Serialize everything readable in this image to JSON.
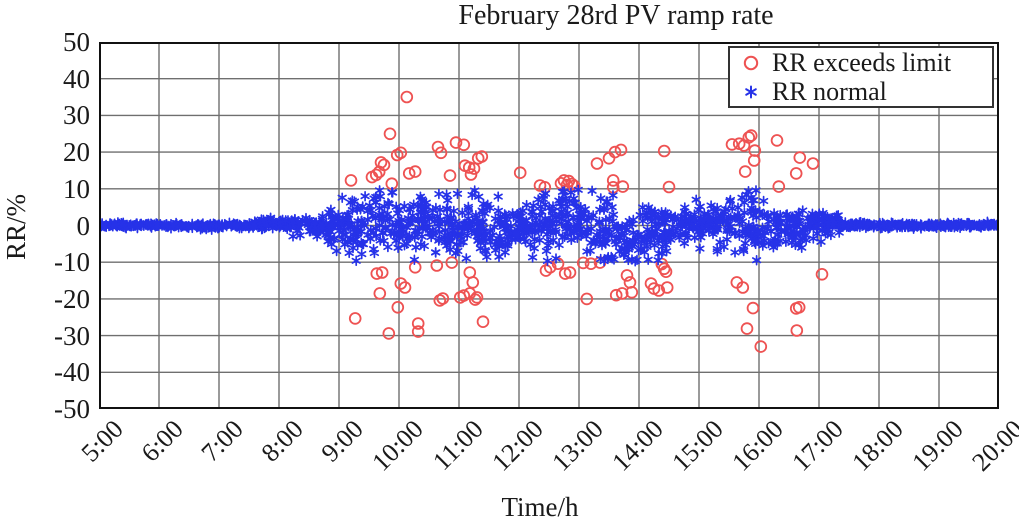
{
  "chart_data": {
    "type": "scatter",
    "title": "February 28rd PV ramp rate",
    "xlabel": "Time/h",
    "ylabel": "RR/%",
    "x_tick_labels": [
      "5:00",
      "6:00",
      "7:00",
      "8:00",
      "9:00",
      "10:00",
      "11:00",
      "12:00",
      "13:00",
      "14:00",
      "15:00",
      "16:00",
      "17:00",
      "18:00",
      "19:00",
      "20:00"
    ],
    "x_range": [
      5,
      20
    ],
    "ylim": [
      -50,
      50
    ],
    "y_ticks": [
      50,
      40,
      30,
      20,
      10,
      0,
      -10,
      -20,
      -30,
      -40,
      -50
    ],
    "grid": true,
    "legend_position": "top-right",
    "colors": {
      "exceeds": "#ee5252",
      "normal": "#2632e8",
      "grid": "#6f6f6f",
      "axis": "#111111"
    },
    "series": [
      {
        "name": "RR exceeds limit",
        "marker": "circle",
        "points": [
          [
            9.2,
            12.3
          ],
          [
            9.27,
            -25.3
          ],
          [
            9.55,
            13.2
          ],
          [
            9.62,
            13.8
          ],
          [
            9.67,
            14.6
          ],
          [
            9.63,
            -13.1
          ],
          [
            9.68,
            -18.5
          ],
          [
            9.7,
            17.2
          ],
          [
            9.72,
            -12.8
          ],
          [
            9.75,
            16.5
          ],
          [
            9.83,
            -29.4
          ],
          [
            9.85,
            25.0
          ],
          [
            9.88,
            11.4
          ],
          [
            9.97,
            19.2
          ],
          [
            9.98,
            -22.3
          ],
          [
            10.03,
            19.8
          ],
          [
            10.03,
            -15.8
          ],
          [
            10.1,
            -16.9
          ],
          [
            10.13,
            35.0
          ],
          [
            10.17,
            14.2
          ],
          [
            10.27,
            14.7
          ],
          [
            10.27,
            -11.4
          ],
          [
            10.32,
            -26.7
          ],
          [
            10.32,
            -28.9
          ],
          [
            10.63,
            -10.9
          ],
          [
            10.65,
            21.4
          ],
          [
            10.68,
            -20.4
          ],
          [
            10.7,
            19.8
          ],
          [
            10.73,
            -19.9
          ],
          [
            10.85,
            13.6
          ],
          [
            10.88,
            -10.1
          ],
          [
            10.95,
            22.6
          ],
          [
            11.02,
            -19.6
          ],
          [
            11.08,
            22.0
          ],
          [
            11.08,
            -19.1
          ],
          [
            11.1,
            16.3
          ],
          [
            11.17,
            15.8
          ],
          [
            11.18,
            -12.8
          ],
          [
            11.18,
            -18.5
          ],
          [
            11.2,
            13.9
          ],
          [
            11.23,
            -15.5
          ],
          [
            11.25,
            15.5
          ],
          [
            11.27,
            -20.2
          ],
          [
            11.3,
            -19.6
          ],
          [
            11.32,
            18.3
          ],
          [
            11.38,
            18.8
          ],
          [
            11.4,
            -26.2
          ],
          [
            12.02,
            14.4
          ],
          [
            12.35,
            10.9
          ],
          [
            12.43,
            10.4
          ],
          [
            12.45,
            -12.3
          ],
          [
            12.52,
            -11.4
          ],
          [
            12.65,
            -10.4
          ],
          [
            12.7,
            11.5
          ],
          [
            12.75,
            12.3
          ],
          [
            12.77,
            -13.1
          ],
          [
            12.8,
            11.0
          ],
          [
            12.83,
            12.1
          ],
          [
            12.85,
            -12.8
          ],
          [
            12.88,
            11.3
          ],
          [
            12.92,
            10.8
          ],
          [
            13.07,
            -10.2
          ],
          [
            13.13,
            -20.0
          ],
          [
            13.2,
            -10.4
          ],
          [
            13.3,
            16.9
          ],
          [
            13.35,
            -10.1
          ],
          [
            13.5,
            18.3
          ],
          [
            13.57,
            12.3
          ],
          [
            13.57,
            10.4
          ],
          [
            13.6,
            20.0
          ],
          [
            13.62,
            -19.0
          ],
          [
            13.7,
            20.6
          ],
          [
            13.72,
            -18.5
          ],
          [
            13.73,
            10.6
          ],
          [
            13.8,
            -13.6
          ],
          [
            13.85,
            -15.5
          ],
          [
            13.88,
            -18.2
          ],
          [
            14.2,
            -15.8
          ],
          [
            14.25,
            -17.2
          ],
          [
            14.33,
            -17.7
          ],
          [
            14.38,
            -10.5
          ],
          [
            14.42,
            20.3
          ],
          [
            14.42,
            -11.8
          ],
          [
            14.45,
            -12.6
          ],
          [
            14.47,
            -16.9
          ],
          [
            14.5,
            10.5
          ],
          [
            15.55,
            22.1
          ],
          [
            15.63,
            -15.5
          ],
          [
            15.67,
            22.3
          ],
          [
            15.73,
            -16.9
          ],
          [
            15.75,
            21.8
          ],
          [
            15.77,
            14.7
          ],
          [
            15.8,
            -28.1
          ],
          [
            15.83,
            24.0
          ],
          [
            15.87,
            24.5
          ],
          [
            15.9,
            -22.5
          ],
          [
            15.92,
            17.7
          ],
          [
            15.93,
            20.4
          ],
          [
            16.03,
            -33.0
          ],
          [
            16.3,
            23.2
          ],
          [
            16.33,
            10.6
          ],
          [
            16.62,
            -22.6
          ],
          [
            16.62,
            14.2
          ],
          [
            16.63,
            -28.6
          ],
          [
            16.67,
            -22.3
          ],
          [
            16.68,
            18.5
          ],
          [
            16.9,
            16.9
          ],
          [
            17.05,
            -13.3
          ]
        ]
      },
      {
        "name": "RR normal",
        "marker": "asterisk",
        "synthesized": true,
        "seed": 1234,
        "limit_abs": 10,
        "segments": [
          {
            "t0": 5.0,
            "t1": 7.7,
            "count": 210,
            "spread": 0.35,
            "wobble": 0.15
          },
          {
            "t0": 7.7,
            "t1": 8.2,
            "count": 48,
            "spread": 0.8,
            "wobble": 0.5
          },
          {
            "t0": 8.2,
            "t1": 8.8,
            "count": 62,
            "spread": 1.5,
            "wobble": 0.8
          },
          {
            "t0": 8.8,
            "t1": 9.15,
            "count": 42,
            "spread": 3.0,
            "wobble": 0.8
          },
          {
            "t0": 9.15,
            "t1": 11.0,
            "count": 210,
            "spread": 4.7,
            "wobble": 1.4
          },
          {
            "t0": 11.0,
            "t1": 11.9,
            "count": 105,
            "spread": 4.2,
            "wobble": 1.4
          },
          {
            "t0": 11.9,
            "t1": 12.3,
            "count": 48,
            "spread": 3.1,
            "wobble": 1.2
          },
          {
            "t0": 12.3,
            "t1": 13.6,
            "count": 150,
            "spread": 4.5,
            "wobble": 1.5
          },
          {
            "t0": 13.6,
            "t1": 14.5,
            "count": 105,
            "spread": 4.1,
            "wobble": 1.4
          },
          {
            "t0": 14.5,
            "t1": 15.3,
            "count": 95,
            "spread": 2.5,
            "wobble": 1.2
          },
          {
            "t0": 15.3,
            "t1": 16.2,
            "count": 100,
            "spread": 3.9,
            "wobble": 1.2
          },
          {
            "t0": 16.2,
            "t1": 16.8,
            "count": 68,
            "spread": 2.9,
            "wobble": 1.0
          },
          {
            "t0": 16.8,
            "t1": 17.35,
            "count": 58,
            "spread": 1.7,
            "wobble": 0.6
          },
          {
            "t0": 17.35,
            "t1": 20.0,
            "count": 215,
            "spread": 0.35,
            "wobble": 0.1
          }
        ]
      }
    ]
  }
}
